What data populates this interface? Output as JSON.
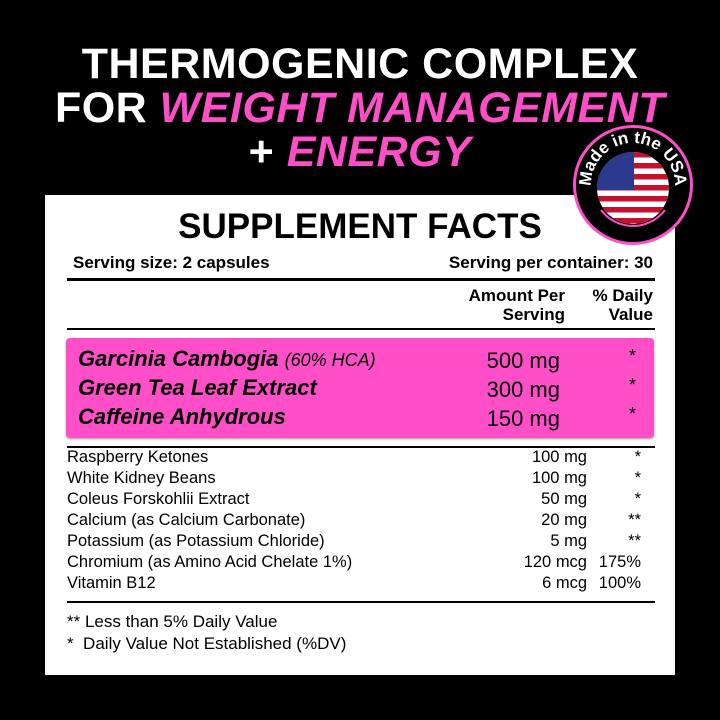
{
  "headline": {
    "line1": "THERMOGENIC COMPLEX",
    "line2_prefix": "FOR ",
    "line2_accent": "WEIGHT MANAGEMENT",
    "line3_prefix": "+ ",
    "line3_accent": "ENERGY"
  },
  "badge": {
    "text": "Made in the USA",
    "icon": "us-flag-icon"
  },
  "facts": {
    "title": "SUPPLEMENT FACTS",
    "serving_size": "Serving size: 2 capsules",
    "servings_per_container": "Serving per container: 30",
    "col_amount": [
      "Amount Per",
      "Serving"
    ],
    "col_dv": [
      "% Daily",
      "Value"
    ],
    "highlighted": [
      {
        "name": "Garcinia Cambogia",
        "note": "(60% HCA)",
        "amount": "500 mg",
        "dv": "*"
      },
      {
        "name": "Green Tea Leaf Extract",
        "note": "",
        "amount": "300 mg",
        "dv": "*"
      },
      {
        "name": "Caffeine Anhydrous",
        "note": "",
        "amount": "150 mg",
        "dv": "*"
      }
    ],
    "items": [
      {
        "name": "Raspberry Ketones",
        "amount": "100 mg",
        "dv": "*"
      },
      {
        "name": "White Kidney Beans",
        "amount": "100 mg",
        "dv": "*"
      },
      {
        "name": "Coleus Forskohlii Extract",
        "amount": "50 mg",
        "dv": "*"
      },
      {
        "name": "Calcium (as Calcium Carbonate)",
        "amount": "20 mg",
        "dv": "**"
      },
      {
        "name": "Potassium (as Potassium Chloride)",
        "amount": "5 mg",
        "dv": "**"
      },
      {
        "name": "Chromium (as Amino Acid Chelate 1%)",
        "amount": "120 mcg",
        "dv": "175%"
      },
      {
        "name": "Vitamin B12",
        "amount": "6 mcg",
        "dv": "100%"
      }
    ],
    "footnotes": [
      "** Less than 5% Daily Value",
      "*  Daily Value Not Established (%DV)"
    ]
  },
  "colors": {
    "accent": "#ff4fc8",
    "background": "#000000",
    "panel": "#ffffff"
  }
}
